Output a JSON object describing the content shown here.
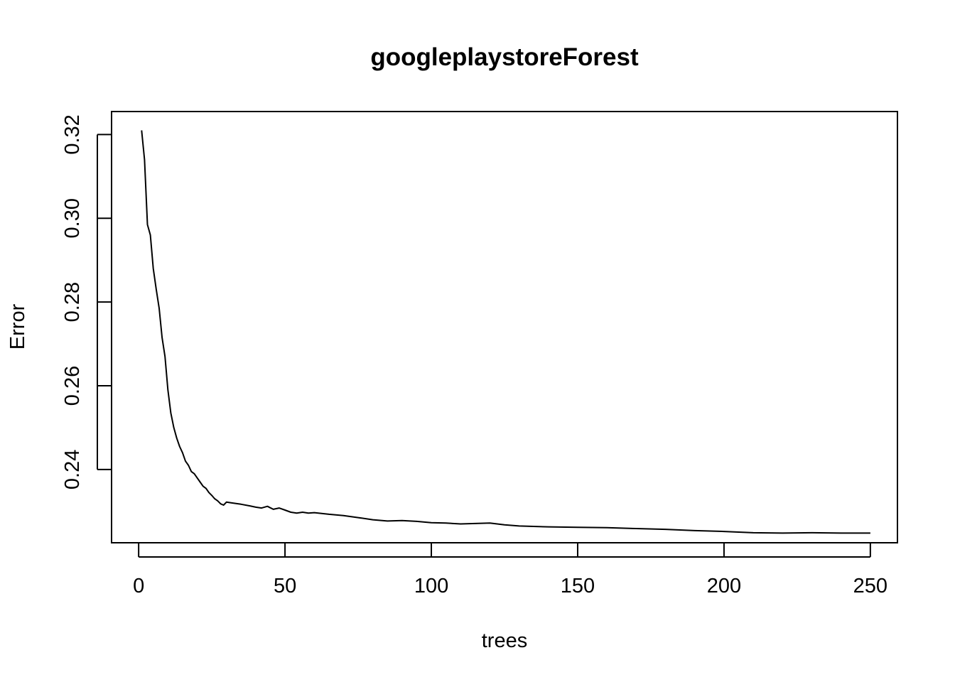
{
  "chart_data": {
    "type": "line",
    "title": "googleplaystoreForest",
    "xlabel": "trees",
    "ylabel": "Error",
    "xlim": [
      0,
      250
    ],
    "ylim": [
      0.2225,
      0.3255
    ],
    "xticks": [
      0,
      50,
      100,
      150,
      200,
      250
    ],
    "xtick_labels": [
      "0",
      "50",
      "100",
      "150",
      "200",
      "250"
    ],
    "yticks": [
      0.24,
      0.26,
      0.28,
      0.3,
      0.32
    ],
    "ytick_labels": [
      "0.24",
      "0.26",
      "0.28",
      "0.30",
      "0.32"
    ],
    "grid": false,
    "legend": "none",
    "series": [
      {
        "color": "#000000",
        "x": [
          1,
          2,
          3,
          4,
          5,
          6,
          7,
          8,
          9,
          10,
          11,
          12,
          13,
          14,
          15,
          16,
          17,
          18,
          19,
          20,
          21,
          22,
          23,
          24,
          25,
          26,
          27,
          28,
          29,
          30,
          32,
          35,
          38,
          40,
          42,
          44,
          46,
          48,
          50,
          52,
          54,
          56,
          58,
          60,
          65,
          70,
          75,
          80,
          85,
          90,
          95,
          100,
          105,
          110,
          115,
          120,
          125,
          130,
          140,
          150,
          160,
          170,
          180,
          190,
          200,
          210,
          220,
          230,
          240,
          250
        ],
        "y": [
          0.321,
          0.314,
          0.2985,
          0.296,
          0.288,
          0.283,
          0.2785,
          0.2715,
          0.267,
          0.259,
          0.2535,
          0.25,
          0.2475,
          0.2455,
          0.244,
          0.242,
          0.241,
          0.2395,
          0.239,
          0.238,
          0.237,
          0.236,
          0.2355,
          0.2345,
          0.2338,
          0.233,
          0.2325,
          0.2318,
          0.2315,
          0.2322,
          0.232,
          0.2317,
          0.2313,
          0.231,
          0.2308,
          0.2312,
          0.2305,
          0.2308,
          0.2303,
          0.2298,
          0.2296,
          0.2298,
          0.2296,
          0.2297,
          0.2293,
          0.229,
          0.2285,
          0.228,
          0.2277,
          0.2278,
          0.2276,
          0.2273,
          0.2272,
          0.227,
          0.2271,
          0.2272,
          0.2268,
          0.2265,
          0.2263,
          0.2262,
          0.2261,
          0.2259,
          0.2257,
          0.2254,
          0.2252,
          0.2249,
          0.2248,
          0.2249,
          0.2248,
          0.2248
        ]
      }
    ]
  }
}
